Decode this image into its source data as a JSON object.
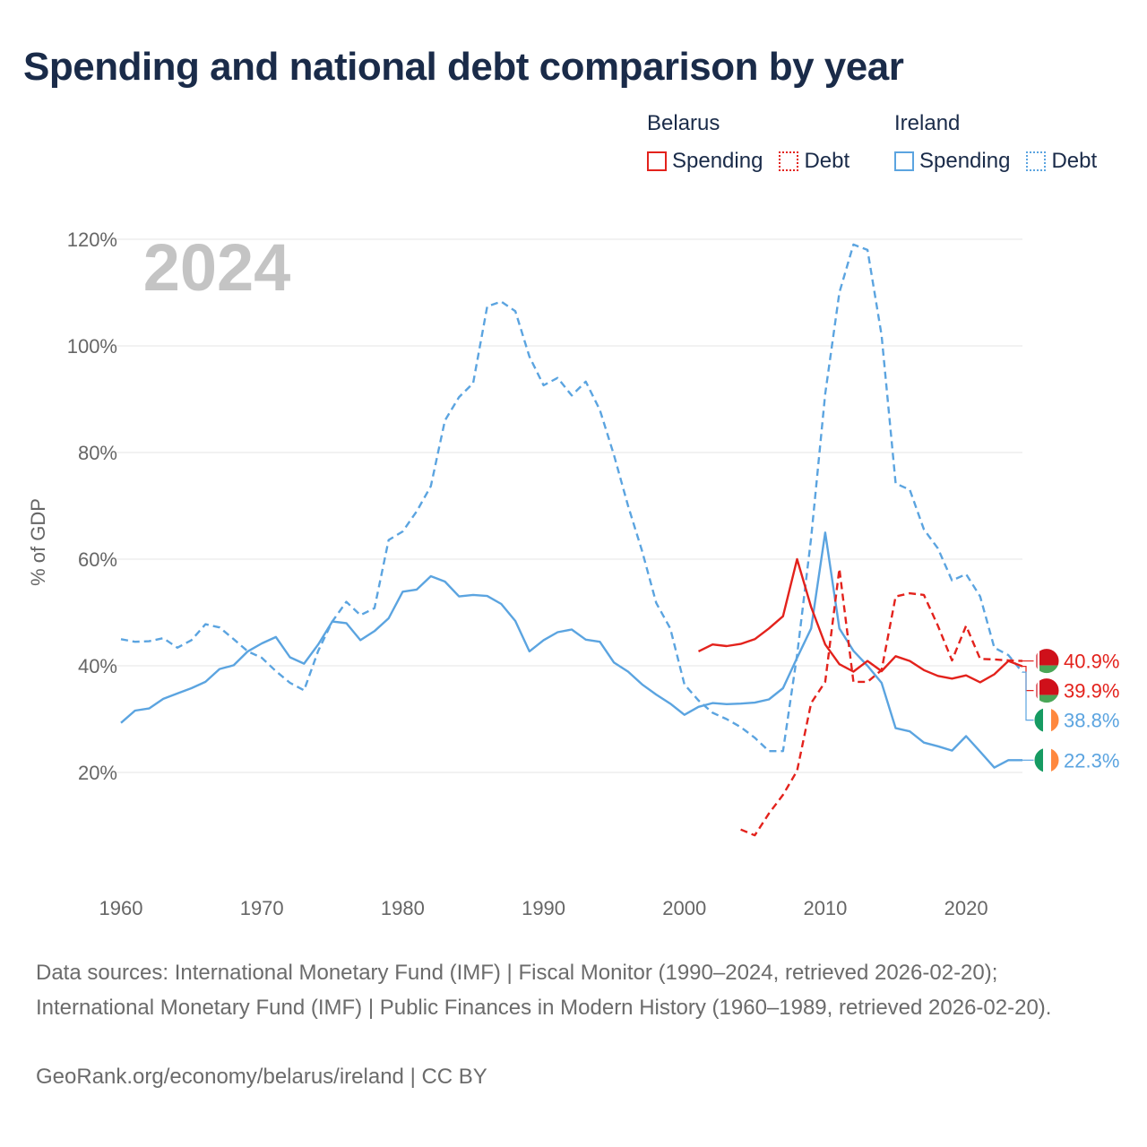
{
  "title": "Spending and national debt comparison by year",
  "year_watermark": "2024",
  "legend": {
    "groups": [
      {
        "country": "Belarus",
        "items": [
          {
            "label": "Spending",
            "style": "solid"
          },
          {
            "label": "Debt",
            "style": "dotted"
          }
        ],
        "color": "#e3221c"
      },
      {
        "country": "Ireland",
        "items": [
          {
            "label": "Spending",
            "style": "solid"
          },
          {
            "label": "Debt",
            "style": "dotted"
          }
        ],
        "color": "#5ba4e0"
      }
    ]
  },
  "colors": {
    "belarus": "#e3221c",
    "ireland": "#5ba4e0",
    "grid": "#e6e6e6",
    "axis_text": "#666666",
    "watermark": "#c4c4c4"
  },
  "chart_data": {
    "type": "line",
    "ylabel": "% of GDP",
    "xlim": [
      1960,
      2024
    ],
    "ylim": [
      0,
      120
    ],
    "yticks": [
      20,
      40,
      60,
      80,
      100,
      120
    ],
    "ytick_labels": [
      "20%",
      "40%",
      "60%",
      "80%",
      "100%",
      "120%"
    ],
    "xticks": [
      1960,
      1970,
      1980,
      1990,
      2000,
      2010,
      2020
    ],
    "xtick_labels": [
      "1960",
      "1970",
      "1980",
      "1990",
      "2000",
      "2010",
      "2020"
    ],
    "series": [
      {
        "name": "Ireland Debt",
        "country": "ireland",
        "style": "dashed",
        "start_year": 1960,
        "values": [
          45,
          44.5,
          44.6,
          45.2,
          43.4,
          44.8,
          47.8,
          47.2,
          45,
          42.7,
          41.5,
          39,
          36.8,
          35.4,
          42.8,
          48.3,
          52,
          49.5,
          50.8,
          63.6,
          65.2,
          69,
          73.7,
          86,
          90.4,
          93,
          107.4,
          108.3,
          106.5,
          98,
          92.6,
          94,
          90.7,
          93.3,
          88,
          79.5,
          70,
          61.5,
          51.8,
          47,
          36.5,
          33.5,
          31.2,
          30,
          28.5,
          26.5,
          24,
          24,
          42,
          64,
          91,
          110,
          119,
          118,
          102,
          74.2,
          73,
          65.6,
          62,
          56,
          57.2,
          53,
          43.4,
          42,
          38.8
        ],
        "end_label": "38.8%"
      },
      {
        "name": "Ireland Spending",
        "country": "ireland",
        "style": "solid",
        "start_year": 1960,
        "values": [
          29.3,
          31.6,
          32,
          33.8,
          34.8,
          35.8,
          37,
          39.4,
          40.1,
          42.7,
          44.2,
          45.4,
          41.6,
          40.4,
          44,
          48.3,
          48,
          44.8,
          46.5,
          48.9,
          53.9,
          54.3,
          56.8,
          55.8,
          53,
          53.3,
          53.1,
          51.6,
          48.4,
          42.7,
          44.8,
          46.3,
          46.8,
          44.9,
          44.5,
          40.6,
          38.9,
          36.5,
          34.6,
          32.9,
          30.8,
          32.3,
          33,
          32.8,
          32.9,
          33.1,
          33.7,
          35.8,
          41.5,
          47,
          65,
          47,
          42.8,
          40,
          36.8,
          28.3,
          27.7,
          25.6,
          24.9,
          24.1,
          26.8,
          23.9,
          20.9,
          22.3,
          22.3
        ],
        "end_label": "22.3%"
      },
      {
        "name": "Belarus Spending",
        "country": "belarus",
        "style": "solid",
        "start_year": 2001,
        "values": [
          42.7,
          44,
          43.7,
          44.1,
          45,
          47,
          49.3,
          60,
          51,
          44,
          40.3,
          38.9,
          40.9,
          39,
          41.8,
          40.9,
          39.2,
          38.1,
          37.6,
          38.2,
          36.9,
          38.4,
          40.9,
          39.9
        ],
        "end_label": "39.9%"
      },
      {
        "name": "Belarus Debt",
        "country": "belarus",
        "style": "dashed",
        "start_year": 2004,
        "values": [
          9.3,
          8.2,
          12.3,
          15.8,
          20.3,
          33,
          37,
          58.2,
          37,
          37,
          39.2,
          53,
          53.6,
          53.3,
          47.5,
          41,
          47.5,
          41.3,
          41.2,
          41,
          40.9
        ],
        "end_label": "40.9%"
      }
    ]
  },
  "footer": {
    "sources": "Data sources: International Monetary Fund (IMF) | Fiscal Monitor (1990–2024, retrieved 2026-02-20); International Monetary Fund (IMF) | Public Finances in Modern History (1960–1989, retrieved 2026-02-20).",
    "credit": "GeoRank.org/economy/belarus/ireland | CC BY"
  }
}
